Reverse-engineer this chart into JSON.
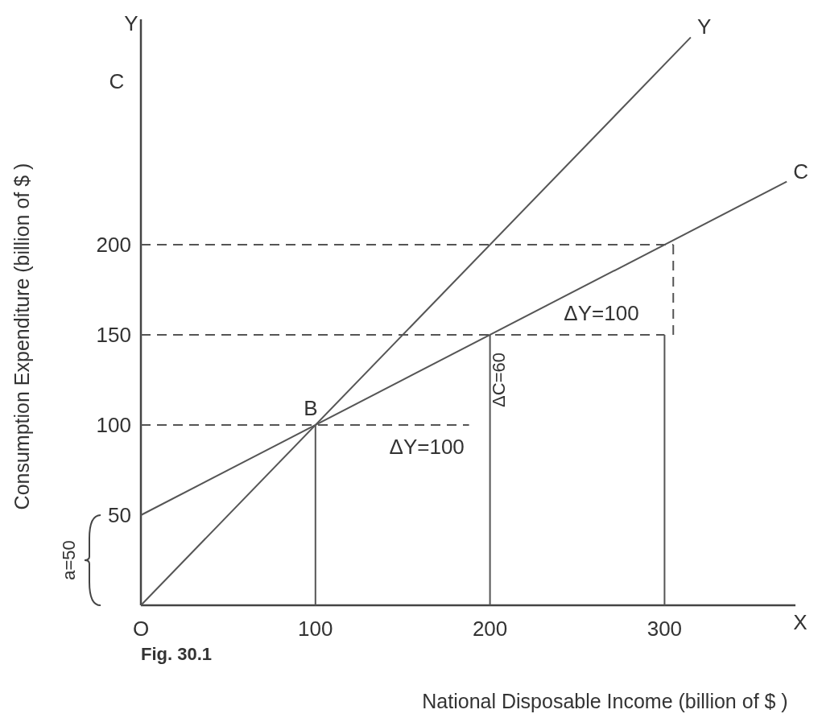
{
  "chart_data": {
    "type": "line",
    "xlabel": "National Disposable Income (billion of $ )",
    "ylabel": "Consumption Expenditure (billion of $ )",
    "xlim": [
      0,
      375
    ],
    "ylim": [
      0,
      325
    ],
    "xticks": [
      {
        "value": 0,
        "label": "O"
      },
      100,
      200,
      300
    ],
    "yticks": [
      50,
      100,
      150,
      200
    ],
    "grid": false,
    "marker": "none",
    "series": [
      {
        "name": "Y",
        "color": "#555555",
        "x": [
          0,
          315
        ],
        "values": [
          0,
          315
        ],
        "line_style": "solid"
      },
      {
        "name": "C",
        "color": "#555555",
        "x": [
          0,
          370
        ],
        "values": [
          50,
          235
        ],
        "line_style": "solid"
      },
      {
        "color": "#555555",
        "x": [
          0,
          188
        ],
        "values": [
          100,
          100
        ],
        "line_style": "dashed"
      },
      {
        "color": "#555555",
        "x": [
          0,
          300
        ],
        "values": [
          150,
          150
        ],
        "line_style": "dashed"
      },
      {
        "color": "#555555",
        "x": [
          0,
          305
        ],
        "values": [
          200,
          200
        ],
        "line_style": "dashed"
      },
      {
        "color": "#555555",
        "x": [
          305,
          305
        ],
        "values": [
          150,
          200
        ],
        "line_style": "dashed"
      },
      {
        "color": "#555555",
        "x": [
          100,
          100
        ],
        "values": [
          0,
          100
        ],
        "line_style": "solid"
      },
      {
        "color": "#555555",
        "x": [
          200,
          200
        ],
        "values": [
          0,
          150
        ],
        "line_style": "solid"
      },
      {
        "color": "#555555",
        "x": [
          300,
          300
        ],
        "values": [
          0,
          150
        ],
        "line_style": "solid"
      }
    ],
    "annotations": [
      {
        "text": "B",
        "x": 100,
        "y": 100
      },
      {
        "text": "ΔY=100",
        "x": 150,
        "y": 100
      },
      {
        "text": "ΔY=100",
        "x": 250,
        "y": 150
      },
      {
        "text": "ΔC=60",
        "x": 200,
        "y": 125
      },
      "a=50",
      "Y",
      "C",
      "X",
      "Fig. 30.1"
    ]
  }
}
